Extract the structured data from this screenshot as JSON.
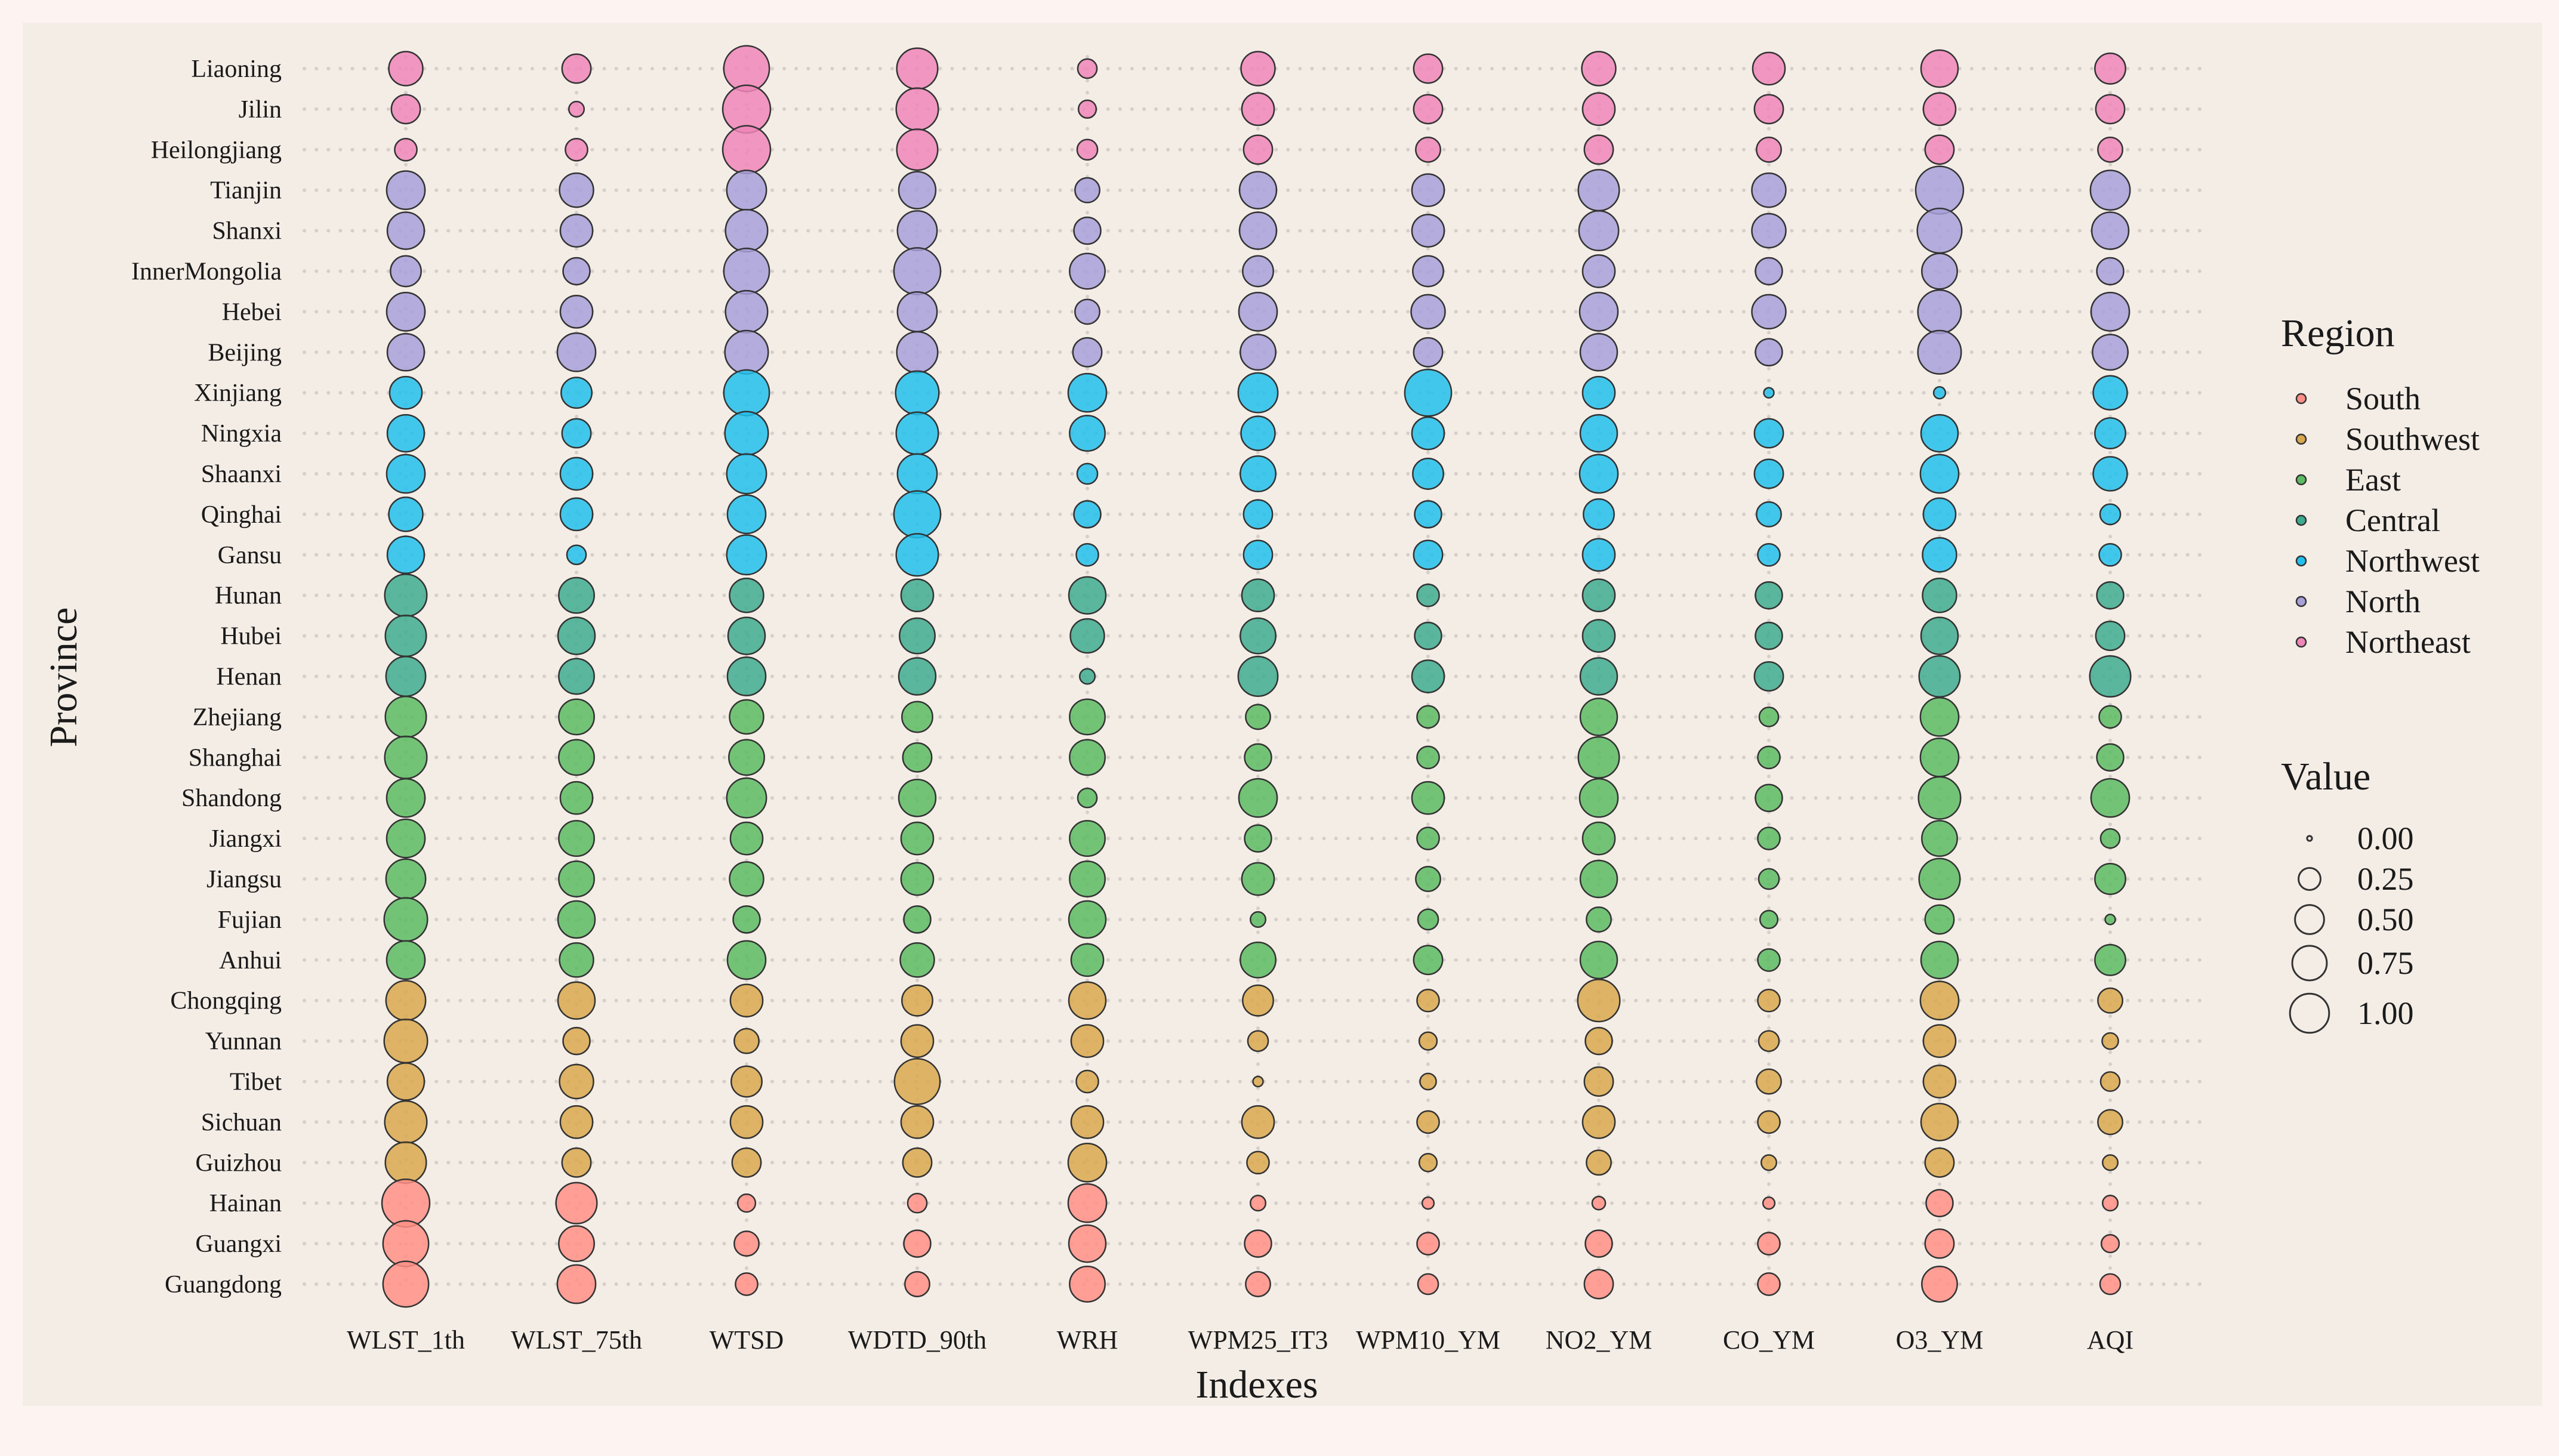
{
  "chart_data": {
    "type": "scatter",
    "subtype": "dot-matrix bubble chart",
    "title": "",
    "xlabel": "Indexes",
    "ylabel": "Province",
    "grid": "dotted horizontal guides",
    "legend_placement": "right",
    "x": [
      "WLST_1th",
      "WLST_75th",
      "WTSD",
      "WDTD_90th",
      "WRH",
      "WPM25_IT3",
      "WPM10_YM",
      "NO2_YM",
      "CO_YM",
      "O3_YM",
      "AQI"
    ],
    "provinces": [
      "Liaoning",
      "Jilin",
      "Heilongjiang",
      "Tianjin",
      "Shanxi",
      "InnerMongolia",
      "Hebei",
      "Beijing",
      "Xinjiang",
      "Ningxia",
      "Shaanxi",
      "Qinghai",
      "Gansu",
      "Hunan",
      "Hubei",
      "Henan",
      "Zhejiang",
      "Shanghai",
      "Shandong",
      "Jiangxi",
      "Jiangsu",
      "Fujian",
      "Anhui",
      "Chongqing",
      "Yunnan",
      "Tibet",
      "Sichuan",
      "Guizhou",
      "Hainan",
      "Guangxi",
      "Guangdong"
    ],
    "province_region": [
      "Northeast",
      "Northeast",
      "Northeast",
      "North",
      "North",
      "North",
      "North",
      "North",
      "Northwest",
      "Northwest",
      "Northwest",
      "Northwest",
      "Northwest",
      "Central",
      "Central",
      "Central",
      "East",
      "East",
      "East",
      "East",
      "East",
      "East",
      "East",
      "Southwest",
      "Southwest",
      "Southwest",
      "Southwest",
      "Southwest",
      "South",
      "South",
      "South"
    ],
    "values": [
      [
        0.45,
        0.3,
        0.9,
        0.7,
        0.1,
        0.45,
        0.3,
        0.45,
        0.4,
        0.55,
        0.35
      ],
      [
        0.3,
        0.05,
        1.0,
        0.75,
        0.08,
        0.4,
        0.3,
        0.4,
        0.3,
        0.4,
        0.3
      ],
      [
        0.15,
        0.15,
        1.0,
        0.7,
        0.12,
        0.3,
        0.2,
        0.3,
        0.2,
        0.3,
        0.2
      ],
      [
        0.6,
        0.45,
        0.65,
        0.55,
        0.2,
        0.55,
        0.4,
        0.7,
        0.45,
        1.0,
        0.65
      ],
      [
        0.55,
        0.4,
        0.75,
        0.65,
        0.25,
        0.55,
        0.4,
        0.65,
        0.45,
        0.85,
        0.55
      ],
      [
        0.35,
        0.25,
        0.9,
        0.95,
        0.5,
        0.35,
        0.35,
        0.4,
        0.25,
        0.5,
        0.25
      ],
      [
        0.6,
        0.4,
        0.75,
        0.65,
        0.2,
        0.6,
        0.45,
        0.6,
        0.45,
        0.8,
        0.6
      ],
      [
        0.55,
        0.6,
        0.8,
        0.7,
        0.3,
        0.5,
        0.3,
        0.55,
        0.25,
        0.8,
        0.5
      ],
      [
        0.4,
        0.35,
        0.9,
        0.8,
        0.6,
        0.65,
        0.95,
        0.4,
        0.01,
        0.02,
        0.45
      ],
      [
        0.55,
        0.3,
        0.8,
        0.75,
        0.5,
        0.45,
        0.4,
        0.55,
        0.3,
        0.55,
        0.35
      ],
      [
        0.6,
        0.4,
        0.65,
        0.65,
        0.12,
        0.5,
        0.35,
        0.6,
        0.3,
        0.6,
        0.45
      ],
      [
        0.45,
        0.4,
        0.6,
        0.95,
        0.25,
        0.3,
        0.25,
        0.35,
        0.2,
        0.4,
        0.12
      ],
      [
        0.55,
        0.1,
        0.65,
        0.75,
        0.15,
        0.3,
        0.3,
        0.4,
        0.15,
        0.45,
        0.15
      ],
      [
        0.75,
        0.5,
        0.45,
        0.4,
        0.55,
        0.4,
        0.15,
        0.4,
        0.25,
        0.45,
        0.25
      ],
      [
        0.7,
        0.55,
        0.55,
        0.5,
        0.45,
        0.5,
        0.25,
        0.4,
        0.25,
        0.55,
        0.3
      ],
      [
        0.65,
        0.5,
        0.6,
        0.55,
        0.05,
        0.65,
        0.4,
        0.55,
        0.3,
        0.7,
        0.7
      ],
      [
        0.7,
        0.5,
        0.45,
        0.35,
        0.5,
        0.2,
        0.15,
        0.55,
        0.1,
        0.6,
        0.15
      ],
      [
        0.75,
        0.5,
        0.5,
        0.3,
        0.5,
        0.25,
        0.15,
        0.7,
        0.15,
        0.6,
        0.25
      ],
      [
        0.6,
        0.4,
        0.65,
        0.55,
        0.1,
        0.6,
        0.4,
        0.6,
        0.25,
        0.75,
        0.6
      ],
      [
        0.6,
        0.5,
        0.4,
        0.4,
        0.5,
        0.25,
        0.15,
        0.4,
        0.15,
        0.5,
        0.1
      ],
      [
        0.65,
        0.5,
        0.45,
        0.4,
        0.5,
        0.4,
        0.2,
        0.55,
        0.12,
        0.7,
        0.35
      ],
      [
        0.8,
        0.55,
        0.25,
        0.25,
        0.55,
        0.05,
        0.12,
        0.2,
        0.08,
        0.3,
        0.01
      ],
      [
        0.6,
        0.45,
        0.6,
        0.45,
        0.4,
        0.5,
        0.3,
        0.55,
        0.15,
        0.55,
        0.35
      ],
      [
        0.65,
        0.55,
        0.4,
        0.35,
        0.55,
        0.35,
        0.15,
        0.75,
        0.15,
        0.6,
        0.2
      ],
      [
        0.8,
        0.25,
        0.2,
        0.4,
        0.4,
        0.12,
        0.08,
        0.25,
        0.12,
        0.4,
        0.06
      ],
      [
        0.55,
        0.45,
        0.35,
        0.9,
        0.15,
        0.01,
        0.06,
        0.3,
        0.2,
        0.4,
        0.1
      ],
      [
        0.75,
        0.4,
        0.4,
        0.4,
        0.4,
        0.4,
        0.15,
        0.4,
        0.15,
        0.55,
        0.2
      ],
      [
        0.7,
        0.3,
        0.3,
        0.3,
        0.6,
        0.15,
        0.08,
        0.2,
        0.05,
        0.3,
        0.05
      ],
      [
        1.0,
        0.7,
        0.08,
        0.1,
        0.6,
        0.05,
        0.02,
        0.03,
        0.02,
        0.25,
        0.05
      ],
      [
        0.9,
        0.5,
        0.2,
        0.25,
        0.55,
        0.25,
        0.15,
        0.25,
        0.15,
        0.3,
        0.08
      ],
      [
        0.9,
        0.6,
        0.15,
        0.2,
        0.5,
        0.2,
        0.12,
        0.3,
        0.15,
        0.5,
        0.12
      ]
    ],
    "size_range": [
      0,
      1
    ],
    "legend_region": {
      "title": "Region",
      "entries": [
        "South",
        "Southwest",
        "East",
        "Central",
        "Northwest",
        "North",
        "Northeast"
      ],
      "colors": [
        "#ff8f86",
        "#d9a84e",
        "#5cbb63",
        "#3eab8e",
        "#22c0ec",
        "#a7a0d9",
        "#ee86b8"
      ]
    },
    "legend_value": {
      "title": "Value",
      "entries": [
        "0.00",
        "0.25",
        "0.50",
        "0.75",
        "1.00"
      ],
      "values": [
        0.0,
        0.25,
        0.5,
        0.75,
        1.0
      ]
    }
  }
}
